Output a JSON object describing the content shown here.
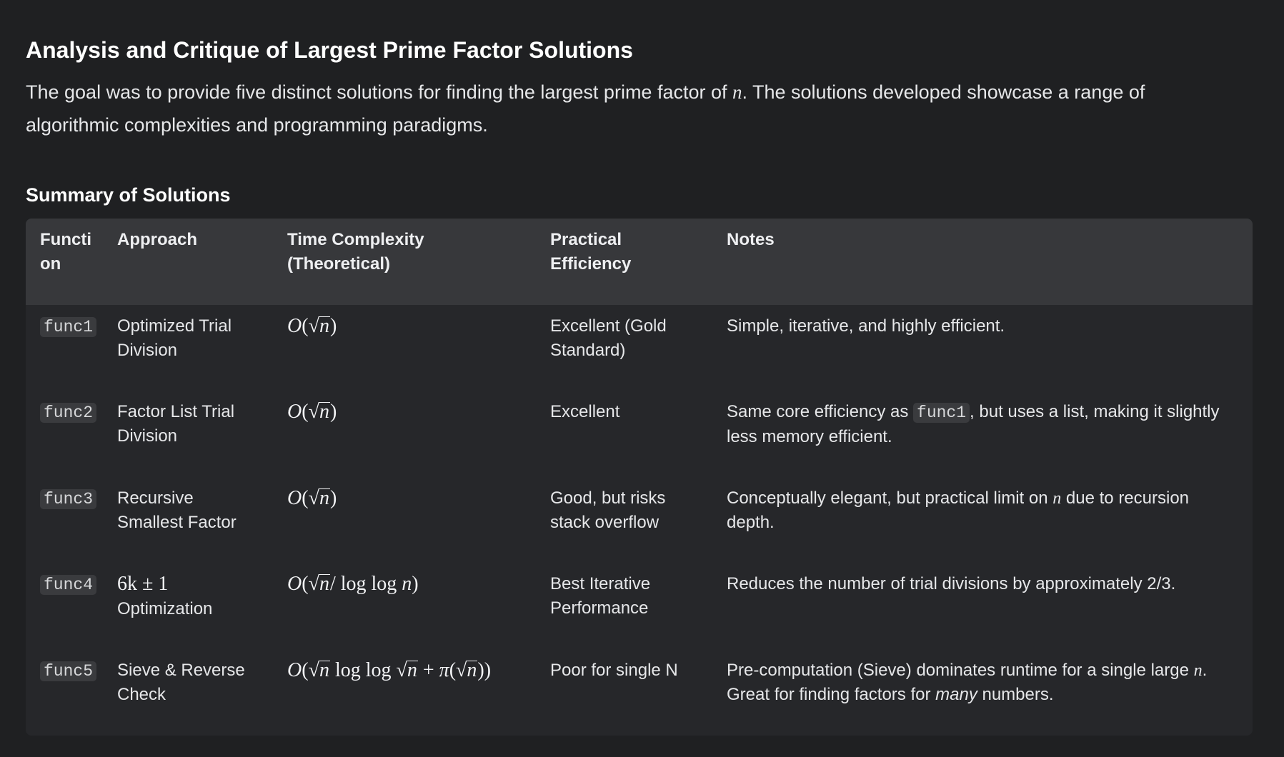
{
  "heading": "Analysis and Critique of Largest Prime Factor Solutions",
  "intro": {
    "before": "The goal was to provide five distinct solutions for finding the largest prime factor of ",
    "var": "n",
    "after": ". The solutions developed showcase a range of algorithmic complexities and programming paradigms."
  },
  "summary_heading": "Summary of Solutions",
  "table": {
    "headers": {
      "function": "Function",
      "approach": "Approach",
      "time": "Time Complexity (Theoretical)",
      "practical": "Practical Efficiency",
      "notes": "Notes"
    },
    "rows": [
      {
        "function": "func1",
        "approach": "Optimized Trial Division",
        "practical": "Excellent (Gold Standard)",
        "notes": "Simple, iterative, and highly efficient."
      },
      {
        "function": "func2",
        "approach": "Factor List Trial Division",
        "practical": "Excellent",
        "notes_pre": "Same core efficiency as ",
        "notes_code": "func1",
        "notes_post": ", but uses a list, making it slightly less memory efficient."
      },
      {
        "function": "func3",
        "approach": "Recursive Smallest Factor",
        "practical": "Good, but risks stack overflow",
        "notes_pre": "Conceptually elegant, but practical limit on ",
        "notes_var": "n",
        "notes_post": " due to recursion depth."
      },
      {
        "function": "func4",
        "approach_math": "6k ± 1",
        "approach_text": "Optimization",
        "practical": "Best Iterative Performance",
        "notes": "Reduces the number of trial divisions by approximately 2/3."
      },
      {
        "function": "func5",
        "approach": "Sieve & Reverse Check",
        "practical": "Poor for single N",
        "notes_pre": "Pre-computation (Sieve) dominates runtime for a single large ",
        "notes_var": "n",
        "notes_mid": ". Great for finding factors for ",
        "notes_em": "many",
        "notes_post": " numbers."
      }
    ]
  }
}
